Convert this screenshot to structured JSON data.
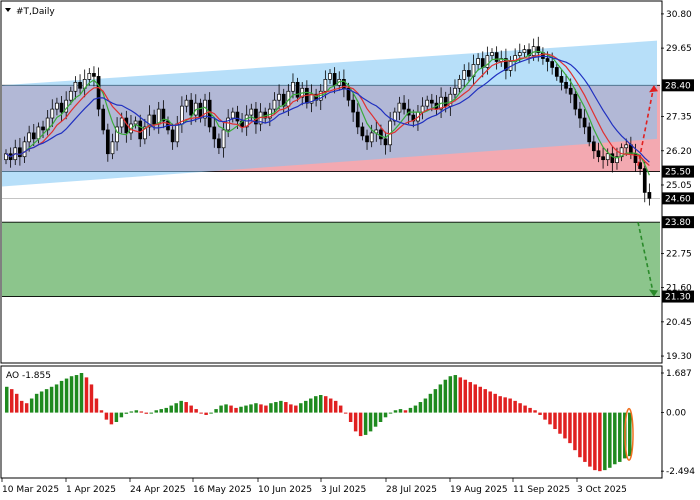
{
  "window": {
    "title": "#T,Daily",
    "menu_icon": "triangle-down-icon"
  },
  "chart_data": [
    {
      "type": "candlestick",
      "symbol": "#T",
      "timeframe": "Daily",
      "y_ticks": [
        "30.80",
        "29.65",
        "28.40",
        "27.35",
        "26.20",
        "25.05",
        "24.60",
        "23.80",
        "22.75",
        "21.60",
        "20.45",
        "19.30"
      ],
      "ylim": [
        19.1,
        31.2
      ],
      "x_ticks": [
        "10 Mar 2025",
        "1 Apr 2025",
        "24 Apr 2025",
        "16 May 2025",
        "10 Jun 2025",
        "3 Jul 2025",
        "28 Jul 2025",
        "19 Aug 2025",
        "11 Sep 2025",
        "3 Oct 2025"
      ],
      "price_tags": [
        {
          "label": "28.40",
          "value": 28.4,
          "color": "#000000"
        },
        {
          "label": "25.50",
          "value": 25.5,
          "color": "#000000"
        },
        {
          "label": "24.60",
          "value": 24.6,
          "color": "#000000"
        },
        {
          "label": "23.80",
          "value": 23.8,
          "color": "#000000"
        },
        {
          "label": "21.30",
          "value": 21.3,
          "color": "#000000"
        }
      ],
      "zones": [
        {
          "name": "resistance-zone",
          "from": 25.5,
          "to": 28.4,
          "color": "#f2a0a8"
        },
        {
          "name": "support-zone",
          "from": 21.3,
          "to": 23.8,
          "color": "#7fbf7f"
        }
      ],
      "channel": {
        "color": "#7cc4f4",
        "upper": [
          [
            0,
            28.4
          ],
          [
            655,
            29.9
          ]
        ],
        "lower": [
          [
            0,
            25.0
          ],
          [
            655,
            26.6
          ]
        ]
      },
      "forecast_arrows": [
        {
          "direction": "up",
          "from": 25.7,
          "to": 28.4,
          "color": "#e02020"
        },
        {
          "direction": "down",
          "from": 23.8,
          "to": 21.3,
          "color": "#2a8a2a"
        }
      ],
      "close_series": [
        26.1,
        25.9,
        26.3,
        26.0,
        26.5,
        26.8,
        26.6,
        27.0,
        26.9,
        27.3,
        27.6,
        27.8,
        27.5,
        27.9,
        28.2,
        28.5,
        28.3,
        28.6,
        28.8,
        28.7,
        27.6,
        26.9,
        26.1,
        26.5,
        27.0,
        27.3,
        26.8,
        27.1,
        27.2,
        26.6,
        27.0,
        27.4,
        27.1,
        27.6,
        27.2,
        26.9,
        26.5,
        27.1,
        27.7,
        27.9,
        27.4,
        27.8,
        27.3,
        27.9,
        27.0,
        26.6,
        26.3,
        26.9,
        27.3,
        27.5,
        27.2,
        27.0,
        27.4,
        27.6,
        27.1,
        27.5,
        27.3,
        27.6,
        27.9,
        28.1,
        27.7,
        28.2,
        28.5,
        28.0,
        28.3,
        27.8,
        28.1,
        27.9,
        28.2,
        28.6,
        28.8,
        28.4,
        28.6,
        28.3,
        27.9,
        27.5,
        27.0,
        26.7,
        26.5,
        26.8,
        26.9,
        26.6,
        26.4,
        27.2,
        27.5,
        27.8,
        27.6,
        27.4,
        27.2,
        27.5,
        27.7,
        27.9,
        27.8,
        27.6,
        28.0,
        27.7,
        28.1,
        28.3,
        28.6,
        28.9,
        28.7,
        29.1,
        29.3,
        29.0,
        29.4,
        29.5,
        29.2,
        29.3,
        28.9,
        29.2,
        29.4,
        29.5,
        29.6,
        29.4,
        29.7,
        29.5,
        29.3,
        29.2,
        29.0,
        28.7,
        28.5,
        28.3,
        28.1,
        27.6,
        27.3,
        27.0,
        26.5,
        26.2,
        26.0,
        25.9,
        26.1,
        25.8,
        26.0,
        26.3,
        26.4,
        26.1,
        25.8,
        25.6,
        24.8,
        24.6
      ],
      "ma_colors": {
        "fast": "#3aaa3a",
        "medium": "#e03030",
        "slow": "#2030c0"
      },
      "indicator": {
        "name": "AO",
        "value_label": "-1.855",
        "y_ticks": [
          "1.687",
          "0.00",
          "-2.494"
        ],
        "ylim": [
          -2.7,
          1.9
        ],
        "up_color": "#1f8a1f",
        "down_color": "#e02020",
        "values": [
          1.1,
          1.0,
          0.8,
          0.5,
          0.4,
          0.6,
          0.8,
          0.9,
          1.0,
          1.1,
          1.2,
          1.35,
          1.45,
          1.55,
          1.6,
          1.687,
          1.5,
          1.2,
          0.6,
          0.1,
          -0.3,
          -0.5,
          -0.4,
          -0.2,
          -0.05,
          0.05,
          0.1,
          0.05,
          -0.05,
          0.0,
          0.1,
          0.15,
          0.2,
          0.3,
          0.4,
          0.5,
          0.45,
          0.3,
          0.15,
          0.0,
          -0.1,
          0.0,
          0.15,
          0.3,
          0.35,
          0.3,
          0.2,
          0.25,
          0.3,
          0.35,
          0.4,
          0.35,
          0.3,
          0.4,
          0.45,
          0.5,
          0.45,
          0.35,
          0.3,
          0.4,
          0.5,
          0.6,
          0.7,
          0.75,
          0.7,
          0.6,
          0.5,
          0.3,
          0.0,
          -0.4,
          -0.8,
          -1.0,
          -0.95,
          -0.8,
          -0.6,
          -0.4,
          -0.2,
          0.0,
          0.1,
          0.15,
          0.1,
          0.2,
          0.3,
          0.45,
          0.6,
          0.8,
          1.0,
          1.2,
          1.4,
          1.55,
          1.6,
          1.5,
          1.4,
          1.3,
          1.2,
          1.1,
          1.0,
          0.9,
          0.8,
          0.7,
          0.65,
          0.6,
          0.5,
          0.4,
          0.3,
          0.2,
          0.1,
          -0.1,
          -0.3,
          -0.5,
          -0.7,
          -0.9,
          -1.1,
          -1.3,
          -1.6,
          -1.9,
          -2.1,
          -2.3,
          -2.45,
          -2.494,
          -2.45,
          -2.35,
          -2.2,
          -2.1,
          -1.95,
          -1.855
        ]
      }
    }
  ]
}
